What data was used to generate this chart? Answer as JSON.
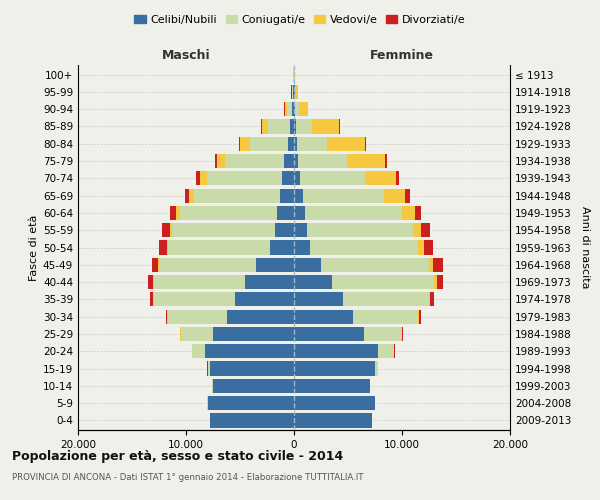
{
  "age_groups": [
    "0-4",
    "5-9",
    "10-14",
    "15-19",
    "20-24",
    "25-29",
    "30-34",
    "35-39",
    "40-44",
    "45-49",
    "50-54",
    "55-59",
    "60-64",
    "65-69",
    "70-74",
    "75-79",
    "80-84",
    "85-89",
    "90-94",
    "95-99",
    "100+"
  ],
  "birth_years": [
    "2009-2013",
    "2004-2008",
    "1999-2003",
    "1994-1998",
    "1989-1993",
    "1984-1988",
    "1979-1983",
    "1974-1978",
    "1969-1973",
    "1964-1968",
    "1959-1963",
    "1954-1958",
    "1949-1953",
    "1944-1948",
    "1939-1943",
    "1934-1938",
    "1929-1933",
    "1924-1928",
    "1919-1923",
    "1914-1918",
    "≤ 1913"
  ],
  "male_celibi": [
    7800,
    8000,
    7500,
    7800,
    8200,
    7500,
    6200,
    5500,
    4500,
    3500,
    2200,
    1800,
    1600,
    1300,
    1100,
    900,
    600,
    400,
    150,
    80,
    30
  ],
  "male_coniugati": [
    10,
    20,
    50,
    200,
    1200,
    3000,
    5500,
    7500,
    8500,
    9000,
    9500,
    9500,
    9000,
    8000,
    7000,
    5500,
    3500,
    2000,
    500,
    100,
    20
  ],
  "male_vedovi": [
    0,
    0,
    0,
    5,
    5,
    10,
    20,
    40,
    60,
    80,
    100,
    200,
    300,
    400,
    600,
    700,
    900,
    600,
    200,
    50,
    10
  ],
  "male_divorziati": [
    0,
    0,
    0,
    10,
    30,
    80,
    150,
    300,
    450,
    600,
    700,
    700,
    600,
    400,
    400,
    200,
    80,
    50,
    30,
    20,
    5
  ],
  "female_celibi": [
    7200,
    7500,
    7000,
    7500,
    7800,
    6500,
    5500,
    4500,
    3500,
    2500,
    1500,
    1200,
    1000,
    800,
    600,
    400,
    300,
    200,
    100,
    50,
    30
  ],
  "female_coniugati": [
    10,
    20,
    80,
    300,
    1500,
    3500,
    6000,
    8000,
    9500,
    10000,
    10000,
    9800,
    9000,
    7500,
    6000,
    4500,
    2800,
    1500,
    400,
    80,
    15
  ],
  "female_vedovi": [
    0,
    0,
    0,
    5,
    5,
    20,
    50,
    100,
    200,
    350,
    500,
    800,
    1200,
    2000,
    2800,
    3500,
    3500,
    2500,
    800,
    200,
    20
  ],
  "female_divorziati": [
    0,
    0,
    0,
    10,
    30,
    80,
    200,
    400,
    600,
    900,
    900,
    800,
    600,
    400,
    300,
    200,
    80,
    50,
    20,
    10,
    5
  ],
  "colors": {
    "celibi": "#3a6da0",
    "coniugati": "#c8dba8",
    "vedovi": "#f5c840",
    "divorziati": "#cc2020"
  },
  "xlim": 20000,
  "xtick_labels": [
    "20.000",
    "10.000",
    "0",
    "10.000",
    "20.000"
  ],
  "xtick_vals": [
    -20000,
    -10000,
    0,
    10000,
    20000
  ],
  "title": "Popolazione per età, sesso e stato civile - 2014",
  "subtitle": "PROVINCIA DI ANCONA - Dati ISTAT 1° gennaio 2014 - Elaborazione TUTTITALIA.IT",
  "ylabel_left": "Fasce di età",
  "ylabel_right": "Anni di nascita",
  "maschi_label": "Maschi",
  "femmine_label": "Femmine",
  "legend_labels": [
    "Celibi/Nubili",
    "Coniugati/e",
    "Vedovi/e",
    "Divorziati/e"
  ],
  "bg_color": "#f0f0eb",
  "plot_bg": "#f0f0eb"
}
